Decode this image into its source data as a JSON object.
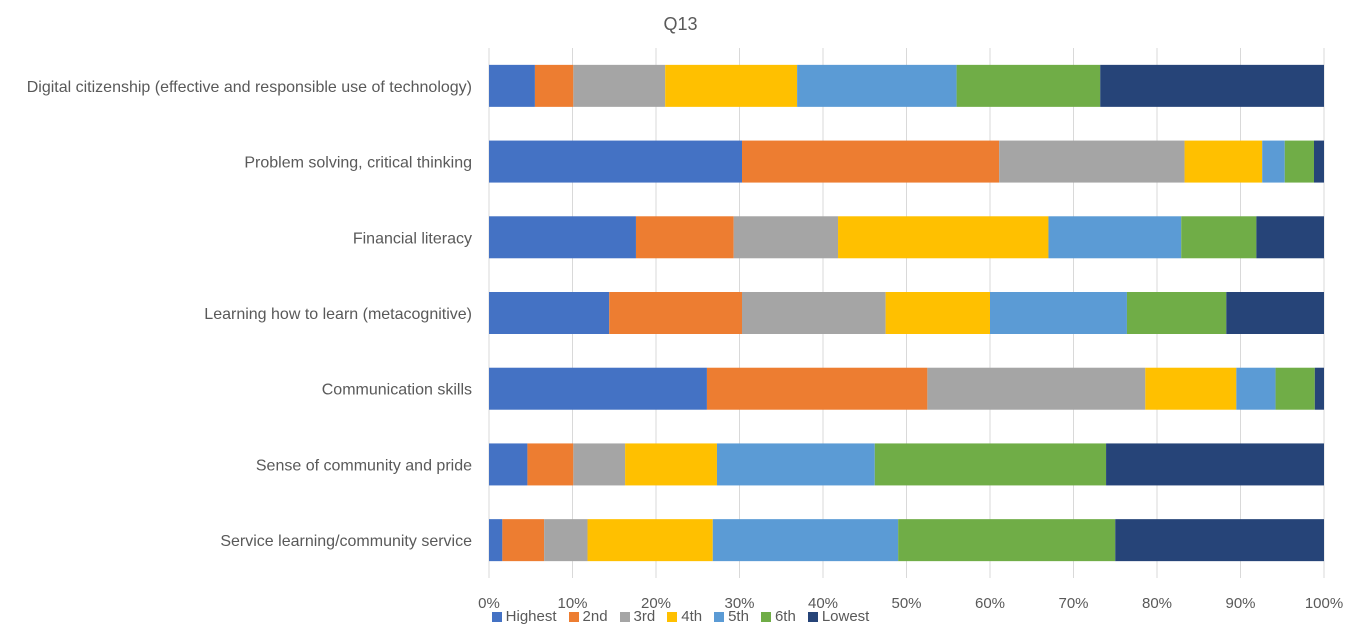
{
  "chart_data": {
    "type": "bar",
    "orientation": "horizontal",
    "stacked": "percent",
    "title": "Q13",
    "categories": [
      "Digital citizenship (effective and responsible use of technology)",
      "Problem solving, critical thinking",
      "Financial literacy",
      "Learning how to learn (metacognitive)",
      "Communication skills",
      "Sense of community and pride",
      "Service learning/community service"
    ],
    "series": [
      {
        "name": "Highest",
        "color": "#4472C4",
        "values": [
          5.5,
          30.3,
          17.6,
          14.4,
          26.1,
          4.6,
          1.6
        ]
      },
      {
        "name": "2nd",
        "color": "#ED7D31",
        "values": [
          4.6,
          30.8,
          11.7,
          15.9,
          26.4,
          5.5,
          5.0
        ]
      },
      {
        "name": "3rd",
        "color": "#A5A5A5",
        "values": [
          11.0,
          22.2,
          12.5,
          17.2,
          26.1,
          6.2,
          5.2
        ]
      },
      {
        "name": "4th",
        "color": "#FFC000",
        "values": [
          15.8,
          9.3,
          25.2,
          12.5,
          10.9,
          11.0,
          15.0
        ]
      },
      {
        "name": "5th",
        "color": "#5B9BD5",
        "values": [
          19.1,
          2.7,
          15.9,
          16.4,
          4.7,
          18.9,
          22.2
        ]
      },
      {
        "name": "6th",
        "color": "#70AD47",
        "values": [
          17.2,
          3.5,
          9.0,
          11.9,
          4.7,
          27.7,
          26.0
        ]
      },
      {
        "name": "Lowest",
        "color": "#264478",
        "values": [
          26.8,
          1.2,
          8.1,
          11.7,
          1.1,
          26.1,
          25.0
        ]
      }
    ],
    "xaxis": {
      "min": 0,
      "max": 100,
      "tick_labels": [
        "0%",
        "10%",
        "20%",
        "30%",
        "40%",
        "50%",
        "60%",
        "70%",
        "80%",
        "90%",
        "100%"
      ]
    },
    "grid": "vertical",
    "legend": "bottom"
  }
}
